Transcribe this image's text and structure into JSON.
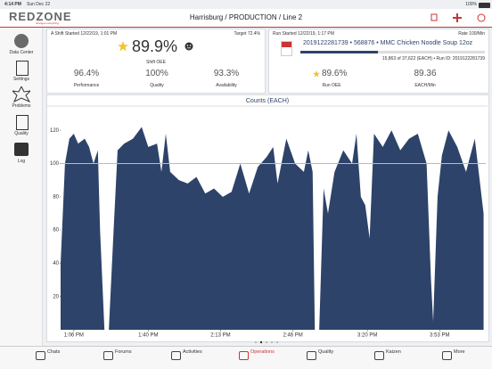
{
  "status_bar": {
    "time": "4:14 PM",
    "date": "Sun Dec 22",
    "battery": "100%"
  },
  "header": {
    "logo": "REDZONE",
    "tagline": "changes everything",
    "title": "Harrisburg / PRODUCTION / Line 2"
  },
  "sidebar": [
    {
      "label": "Data Center"
    },
    {
      "label": "Settings"
    },
    {
      "label": "Problems"
    },
    {
      "label": "Quality"
    },
    {
      "label": "Log"
    }
  ],
  "shift_panel": {
    "started": "A Shift Started 12/22/19, 1:01 PM",
    "target": "Target 72.4%",
    "oee": "89.9%",
    "oee_label": "Shift OEE",
    "metrics": [
      {
        "value": "96.4%",
        "label": "Performance"
      },
      {
        "value": "100%",
        "label": "Quality"
      },
      {
        "value": "93.3%",
        "label": "Availability"
      }
    ]
  },
  "run_panel": {
    "started": "Run Started 12/22/19, 1:17 PM",
    "rate": "Rate 100/Min",
    "product": "2019122281739 • 568876 • MMC Chicken Noodle Soup 12oz",
    "progress": "15,863 of 37,622 (EACH) • Run ID: 2019122281739",
    "metrics": [
      {
        "value": "89.6%",
        "label": "Run OEE"
      },
      {
        "value": "89.36",
        "label": "EACH/Min"
      }
    ]
  },
  "chart_data": {
    "type": "area",
    "title": "Counts (EACH)",
    "color": "#2e4369",
    "target_line": 100,
    "target_color": "#bbbbbb",
    "x": [
      780,
      782,
      784,
      786,
      788,
      791,
      793,
      795,
      797,
      798,
      800,
      802,
      804,
      806,
      809,
      813,
      817,
      820,
      824,
      826,
      828,
      830,
      834,
      838,
      842,
      846,
      850,
      854,
      858,
      862,
      866,
      870,
      874,
      877,
      879,
      883,
      887,
      891,
      893,
      895,
      896,
      898,
      900,
      902,
      905,
      909,
      913,
      915,
      917,
      919,
      921,
      923,
      927,
      931,
      935,
      939,
      943,
      947,
      949,
      950,
      952,
      954,
      957,
      961,
      965,
      969,
      973
    ],
    "values": [
      40,
      100,
      115,
      118,
      112,
      115,
      110,
      100,
      108,
      60,
      0,
      0,
      55,
      108,
      112,
      115,
      122,
      110,
      112,
      95,
      118,
      95,
      90,
      88,
      92,
      82,
      85,
      80,
      83,
      100,
      82,
      98,
      104,
      110,
      88,
      115,
      100,
      95,
      108,
      95,
      0,
      0,
      85,
      70,
      95,
      108,
      100,
      118,
      80,
      75,
      55,
      118,
      110,
      120,
      108,
      115,
      118,
      100,
      30,
      5,
      80,
      105,
      120,
      110,
      95,
      115,
      70
    ],
    "xlim": [
      780,
      974
    ],
    "ylim": [
      0,
      133
    ],
    "yticks": [
      20,
      40,
      60,
      80,
      100,
      120
    ],
    "xticks": [
      {
        "value": 786,
        "label": "1:06 PM"
      },
      {
        "value": 820,
        "label": "1:40 PM"
      },
      {
        "value": 853,
        "label": "2:13 PM"
      },
      {
        "value": 886,
        "label": "2:46 PM"
      },
      {
        "value": 920,
        "label": "3:20 PM"
      },
      {
        "value": 953,
        "label": "3:53 PM"
      }
    ]
  },
  "tabs": [
    {
      "label": "Chats"
    },
    {
      "label": "Forums"
    },
    {
      "label": "Activities"
    },
    {
      "label": "Operations"
    },
    {
      "label": "Quality"
    },
    {
      "label": "Kaizen"
    },
    {
      "label": "More"
    }
  ]
}
